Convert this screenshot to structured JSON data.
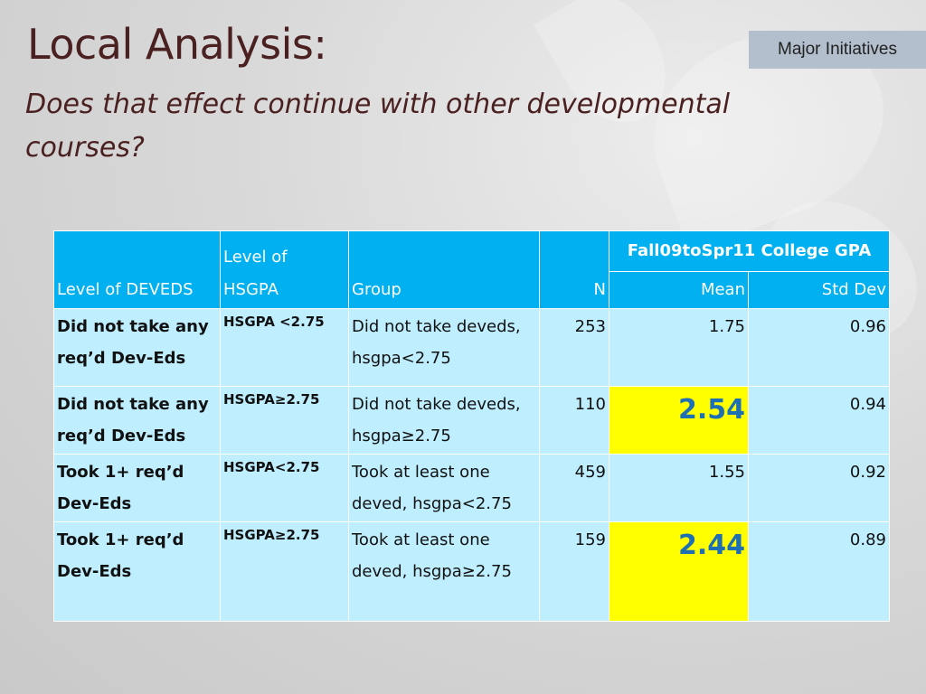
{
  "slide": {
    "title": "Local Analysis:",
    "subtitle": "Does that effect continue with other developmental courses?",
    "badge": "Major Initiatives"
  },
  "table": {
    "headers": {
      "level_deveds": "Level of DEVEDS",
      "level_hsgpa": "Level of HSGPA",
      "group": "Group",
      "n": "N",
      "gpa_group": "Fall09toSpr11 College GPA",
      "mean": "Mean",
      "std_dev": "Std Dev"
    },
    "rows": [
      {
        "level": "Did not take any req’d Dev-Eds",
        "hsgpa": "HSGPA <2.75",
        "group": "Did not take deveds, hsgpa<2.75",
        "n": "253",
        "mean": "1.75",
        "std": "0.96",
        "highlight": false
      },
      {
        "level": "Did not take any req’d Dev-Eds",
        "hsgpa": "HSGPA≥2.75",
        "group": "Did not take deveds, hsgpa≥2.75",
        "n": "110",
        "mean": "2.54",
        "std": "0.94",
        "highlight": true
      },
      {
        "level": "Took 1+ req’d Dev-Eds",
        "hsgpa": "HSGPA<2.75",
        "group": "Took at least one deved, hsgpa<2.75",
        "n": "459",
        "mean": "1.55",
        "std": "0.92",
        "highlight": false
      },
      {
        "level": "Took 1+ req’d Dev-Eds",
        "hsgpa": "HSGPA≥2.75",
        "group": "Took at least one deved, hsgpa≥2.75",
        "n": "159",
        "mean": "2.44",
        "std": "0.89",
        "highlight": true
      }
    ]
  },
  "colors": {
    "header_bg": "#00b0f0",
    "cell_bg": "#bfeeff",
    "highlight_bg": "#ffff00",
    "highlight_text": "#1f6fb5",
    "title_text": "#4a2020"
  }
}
